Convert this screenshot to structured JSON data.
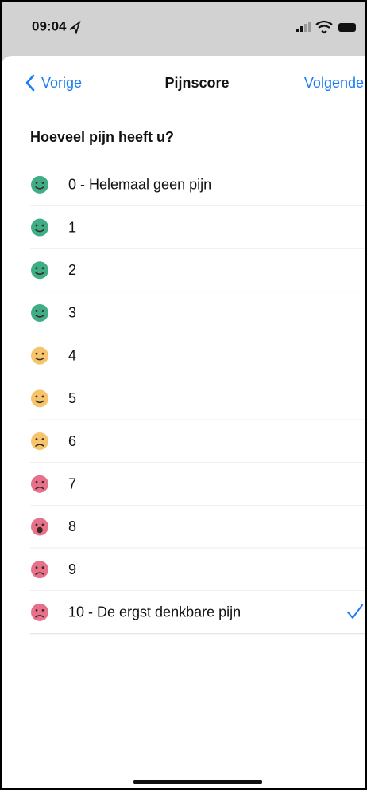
{
  "status_bar": {
    "time": "09:04"
  },
  "nav": {
    "back": "Vorige",
    "title": "Pijnscore",
    "next": "Volgende"
  },
  "question": "Hoeveel pijn heeft u?",
  "options": [
    {
      "label": "0 - Helemaal geen pijn",
      "color": "#3fae86"
    },
    {
      "label": "1",
      "color": "#3fae86"
    },
    {
      "label": "2",
      "color": "#3fae86"
    },
    {
      "label": "3",
      "color": "#3fae86"
    },
    {
      "label": "4",
      "color": "#f6c46c"
    },
    {
      "label": "5",
      "color": "#f6c46c"
    },
    {
      "label": "6",
      "color": "#f6c46c"
    },
    {
      "label": "7",
      "color": "#e7718b"
    },
    {
      "label": "8",
      "color": "#e7718b"
    },
    {
      "label": "9",
      "color": "#e7718b"
    },
    {
      "label": "10 - De ergst denkbare pijn",
      "color": "#e7718b"
    }
  ],
  "selected_index": 10
}
